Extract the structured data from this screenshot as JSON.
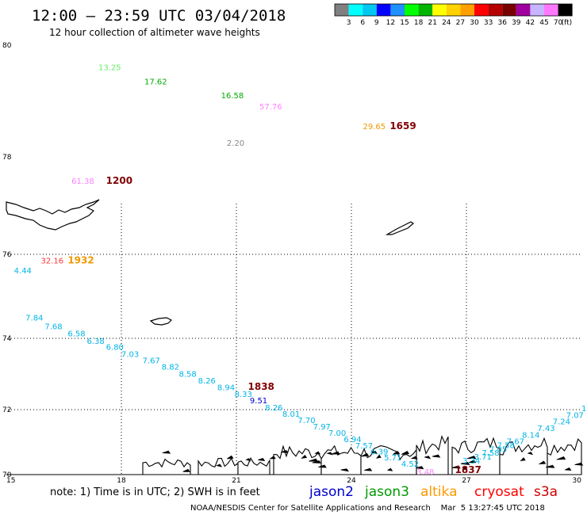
{
  "header": {
    "title": "12:00 — 23:59 UTC 03/04/2018",
    "subtitle": "12 hour collection of altimeter wave heights"
  },
  "legend": {
    "colors": [
      "#808080",
      "#00ffff",
      "#00c8f0",
      "#0000ff",
      "#1e90ff",
      "#00ff00",
      "#00b400",
      "#ffff00",
      "#ffd200",
      "#ffa000",
      "#ff0000",
      "#b40000",
      "#780000",
      "#a000a0",
      "#c8b4ff",
      "#ff78ff",
      "#000000"
    ],
    "labels": [
      "3",
      "6",
      "9",
      "12",
      "15",
      "18",
      "21",
      "24",
      "27",
      "30",
      "33",
      "36",
      "39",
      "42",
      "45",
      "70"
    ],
    "unit": "(ft)"
  },
  "axes": {
    "lon_ticks": [
      "15",
      "18",
      "21",
      "24",
      "27",
      "30"
    ],
    "lat_ticks": [
      "80",
      "78",
      "76",
      "74",
      "72",
      "70"
    ]
  },
  "colors": {
    "jason2": "#0000cc",
    "jason3": "#009900",
    "altika": "#ff9900",
    "cryosat": "#ff0000",
    "s3a": "#cc0000",
    "track_cyan": "#00b4e6"
  },
  "wave_labels": [
    {
      "text": "13.25",
      "color": "#66ee66",
      "lon": 17.4,
      "lat": 79.55
    },
    {
      "text": "17.62",
      "color": "#00aa00",
      "lon": 18.6,
      "lat": 79.3
    },
    {
      "text": "16.58",
      "color": "#00aa00",
      "lon": 20.6,
      "lat": 79.05
    },
    {
      "text": "57.76",
      "color": "#ff80ff",
      "lon": 21.6,
      "lat": 78.85
    },
    {
      "text": "29.65",
      "color": "#ee9900",
      "lon": 24.3,
      "lat": 78.5
    },
    {
      "text": "2.20",
      "color": "#888888",
      "lon": 20.75,
      "lat": 78.2
    },
    {
      "text": "61.38",
      "color": "#ff80ff",
      "lon": 16.7,
      "lat": 77.45
    },
    {
      "text": "32.16",
      "color": "#ff3333",
      "lon": 15.9,
      "lat": 75.78
    },
    {
      "text": "4.44",
      "color": "#00b4e6",
      "lon": 15.2,
      "lat": 75.55
    },
    {
      "text": "7.84",
      "color": "#00b4e6",
      "lon": 15.5,
      "lat": 74.42
    },
    {
      "text": "7.68",
      "color": "#00b4e6",
      "lon": 16.0,
      "lat": 74.22
    },
    {
      "text": "6.58",
      "color": "#00b4e6",
      "lon": 16.6,
      "lat": 74.05
    },
    {
      "text": "6.38",
      "color": "#00b4e6",
      "lon": 17.1,
      "lat": 73.85
    },
    {
      "text": "6.80",
      "color": "#00b4e6",
      "lon": 17.6,
      "lat": 73.68
    },
    {
      "text": "7.03",
      "color": "#00b4e6",
      "lon": 18.0,
      "lat": 73.48
    },
    {
      "text": "7.67",
      "color": "#00b4e6",
      "lon": 18.55,
      "lat": 73.3
    },
    {
      "text": "8.82",
      "color": "#00b4e6",
      "lon": 19.05,
      "lat": 73.12
    },
    {
      "text": "8.58",
      "color": "#00b4e6",
      "lon": 19.5,
      "lat": 72.92
    },
    {
      "text": "8.26",
      "color": "#00b4e6",
      "lon": 20.0,
      "lat": 72.73
    },
    {
      "text": "8.94",
      "color": "#00b4e6",
      "lon": 20.5,
      "lat": 72.54
    },
    {
      "text": "8.33",
      "color": "#00b4e6",
      "lon": 20.95,
      "lat": 72.36
    },
    {
      "text": "9.51",
      "color": "#0000cc",
      "lon": 21.35,
      "lat": 72.18
    },
    {
      "text": "8.26",
      "color": "#00b4e6",
      "lon": 21.75,
      "lat": 71.97
    },
    {
      "text": "8.01",
      "color": "#00b4e6",
      "lon": 22.2,
      "lat": 71.78
    },
    {
      "text": "7.70",
      "color": "#00b4e6",
      "lon": 22.6,
      "lat": 71.59
    },
    {
      "text": "7.97",
      "color": "#00b4e6",
      "lon": 23.0,
      "lat": 71.39
    },
    {
      "text": "7.00",
      "color": "#00b4e6",
      "lon": 23.4,
      "lat": 71.2
    },
    {
      "text": "6.94",
      "color": "#00b4e6",
      "lon": 23.8,
      "lat": 71.0
    },
    {
      "text": "7.57",
      "color": "#00b4e6",
      "lon": 24.1,
      "lat": 70.8
    },
    {
      "text": "6.39",
      "color": "#00b4e6",
      "lon": 24.5,
      "lat": 70.62
    },
    {
      "text": "5.71",
      "color": "#00b4e6",
      "lon": 24.85,
      "lat": 70.44
    },
    {
      "text": "4.52",
      "color": "#00b4e6",
      "lon": 25.3,
      "lat": 70.24
    },
    {
      "text": "3.48",
      "color": "#ff80ff",
      "lon": 25.7,
      "lat": 70.0
    },
    {
      "text": "3.34",
      "color": "#00b4e6",
      "lon": 26.9,
      "lat": 70.34
    },
    {
      "text": "3.71",
      "color": "#00b4e6",
      "lon": 27.2,
      "lat": 70.46
    },
    {
      "text": "7.58",
      "color": "#00b4e6",
      "lon": 27.4,
      "lat": 70.58
    },
    {
      "text": "7.05",
      "color": "#00b4e6",
      "lon": 27.6,
      "lat": 70.7
    },
    {
      "text": "7.58",
      "color": "#00b4e6",
      "lon": 27.8,
      "lat": 70.82
    },
    {
      "text": "7.67",
      "color": "#00b4e6",
      "lon": 28.05,
      "lat": 70.94
    },
    {
      "text": "8.14",
      "color": "#00b4e6",
      "lon": 28.45,
      "lat": 71.14
    },
    {
      "text": "7.43",
      "color": "#00b4e6",
      "lon": 28.85,
      "lat": 71.34
    },
    {
      "text": "7.24",
      "color": "#00b4e6",
      "lon": 29.25,
      "lat": 71.55
    },
    {
      "text": "7.07",
      "color": "#00b4e6",
      "lon": 29.6,
      "lat": 71.75
    },
    {
      "text": "1",
      "color": "#00b4e6",
      "lon": 30.0,
      "lat": 71.95
    }
  ],
  "time_labels": [
    {
      "text": "1200",
      "color": "#800000",
      "lon": 17.6,
      "lat": 77.45
    },
    {
      "text": "1659",
      "color": "#800000",
      "lon": 25.0,
      "lat": 78.5
    },
    {
      "text": "1932",
      "color": "#ee9900",
      "lon": 16.6,
      "lat": 75.78
    },
    {
      "text": "1838",
      "color": "#800000",
      "lon": 21.3,
      "lat": 72.56
    },
    {
      "text": "1837",
      "color": "#800000",
      "lon": 26.7,
      "lat": 70.05
    }
  ],
  "footer": {
    "note": "note: 1) Time is in UTC; 2) SWH is in feet",
    "satellites": [
      {
        "name": "jason2",
        "color": "#0000cc"
      },
      {
        "name": "jason3",
        "color": "#009900"
      },
      {
        "name": "altika",
        "color": "#ff9900"
      },
      {
        "name": "cryosat",
        "color": "#ff0000"
      },
      {
        "name": "s3a",
        "color": "#cc0000"
      }
    ],
    "credit": "NOAA/NESDIS Center for Satellite Applications and Research    Mar  5 13:27:45 UTC 2018"
  }
}
